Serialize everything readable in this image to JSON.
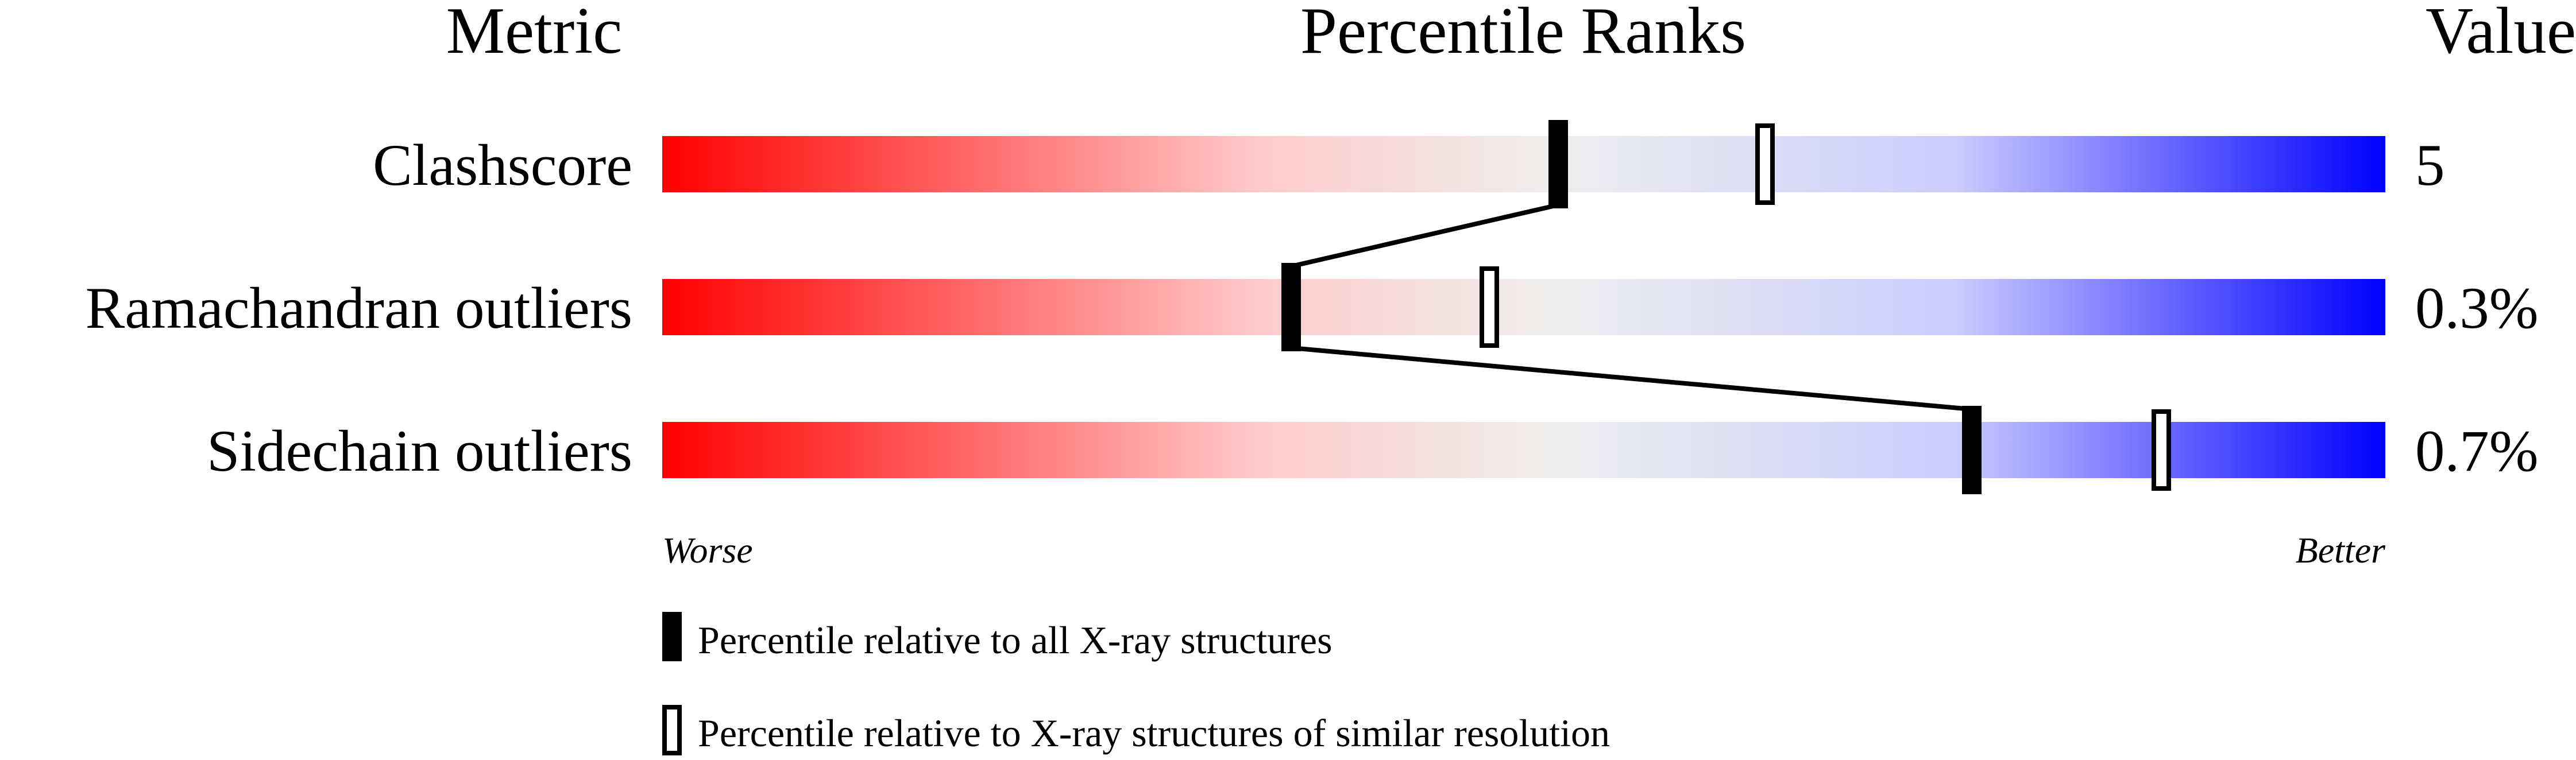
{
  "chart_data": {
    "type": "percentile-slider",
    "headers": {
      "metric": "Metric",
      "ranks": "Percentile Ranks",
      "value": "Value"
    },
    "xlim": [
      0,
      100
    ],
    "metrics": [
      {
        "name": "Clashscore",
        "value": "5",
        "percentile_all": 52,
        "percentile_similar": 64
      },
      {
        "name": "Ramachandran outliers",
        "value": "0.3%",
        "percentile_all": 36.5,
        "percentile_similar": 48
      },
      {
        "name": "Sidechain outliers",
        "value": "0.7%",
        "percentile_all": 76,
        "percentile_similar": 87
      }
    ],
    "axis": {
      "worse": "Worse",
      "better": "Better"
    },
    "legend": {
      "all": "Percentile relative to all X-ray structures",
      "similar": "Percentile relative to X-ray structures of similar resolution"
    },
    "colors": {
      "worse": "#ff0000",
      "middle": "#eeeeee",
      "better": "#0000ff",
      "marker": "#000000"
    }
  }
}
